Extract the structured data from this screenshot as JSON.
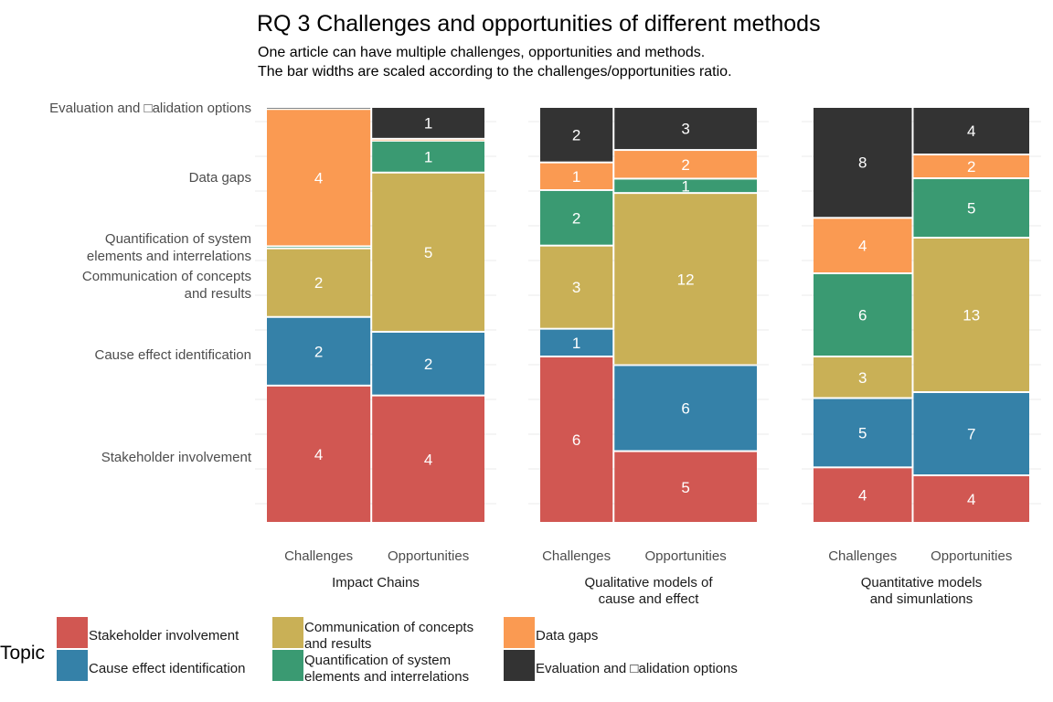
{
  "chart_data": {
    "type": "bar",
    "title": "RQ 3 Challenges and opportunities of different methods",
    "subtitle": [
      "One article can have multiple challenges, opportunities and methods.",
      "The bar widths are scaled according to the challenges/opportunities ratio."
    ],
    "y_axis_labels": [
      {
        "lines": [
          "Evaluation and □alidation options"
        ]
      },
      {
        "lines": [
          "Data gaps"
        ]
      },
      {
        "lines": [
          "Quantification of system",
          "elements and interrelations"
        ]
      },
      {
        "lines": [
          "Communication of concepts",
          "and results"
        ]
      },
      {
        "lines": [
          "Cause effect identification"
        ]
      },
      {
        "lines": [
          "Stakeholder involvement"
        ]
      }
    ],
    "legend": {
      "title": "Topic",
      "position": "bottom",
      "items": [
        {
          "key": "stakeholder",
          "lines": [
            "Stakeholder involvement"
          ]
        },
        {
          "key": "cause",
          "lines": [
            "Cause effect identification"
          ]
        },
        {
          "key": "communication",
          "lines": [
            "Communication of concepts",
            "and results"
          ]
        },
        {
          "key": "quantification",
          "lines": [
            "Quantification of system",
            "elements and interrelations"
          ]
        },
        {
          "key": "datagaps",
          "lines": [
            "Data gaps"
          ]
        },
        {
          "key": "evaluation",
          "lines": [
            "Evaluation and □alidation options"
          ]
        }
      ]
    },
    "colors": {
      "stakeholder": "#d15752",
      "cause": "#3581a8",
      "communication": "#c9b056",
      "quantification": "#3a9a72",
      "datagaps": "#fa9a52",
      "evaluation": "#333333"
    },
    "stack_order": [
      "stakeholder",
      "cause",
      "communication",
      "quantification",
      "datagaps",
      "evaluation"
    ],
    "facets": [
      {
        "label": [
          "Impact Chains"
        ],
        "columns": [
          {
            "category": "Challenges",
            "share": 0.48,
            "values": {
              "stakeholder": 4,
              "cause": 2,
              "communication": 2,
              "quantification": 0.06,
              "datagaps": 4,
              "evaluation": 0.06
            }
          },
          {
            "category": "Opportunities",
            "share": 0.52,
            "values": {
              "stakeholder": 4,
              "cause": 2,
              "communication": 5,
              "quantification": 1,
              "datagaps": 0.06,
              "evaluation": 1
            }
          }
        ]
      },
      {
        "label": [
          "Qualitative models of",
          "cause and effect"
        ],
        "columns": [
          {
            "category": "Challenges",
            "share": 0.34,
            "values": {
              "stakeholder": 6,
              "cause": 1,
              "communication": 3,
              "quantification": 2,
              "datagaps": 1,
              "evaluation": 2
            }
          },
          {
            "category": "Opportunities",
            "share": 0.66,
            "values": {
              "stakeholder": 5,
              "cause": 6,
              "communication": 12,
              "quantification": 1,
              "datagaps": 2,
              "evaluation": 3
            }
          }
        ]
      },
      {
        "label": [
          "Quantitative models",
          "and simunlations"
        ],
        "columns": [
          {
            "category": "Challenges",
            "share": 0.46,
            "values": {
              "stakeholder": 4,
              "cause": 5,
              "communication": 3,
              "quantification": 6,
              "datagaps": 4,
              "evaluation": 8
            }
          },
          {
            "category": "Opportunities",
            "share": 0.54,
            "values": {
              "stakeholder": 4,
              "cause": 7,
              "communication": 13,
              "quantification": 5,
              "datagaps": 2,
              "evaluation": 4
            }
          }
        ]
      }
    ],
    "show_labels_min": 0.5,
    "grid": true
  }
}
